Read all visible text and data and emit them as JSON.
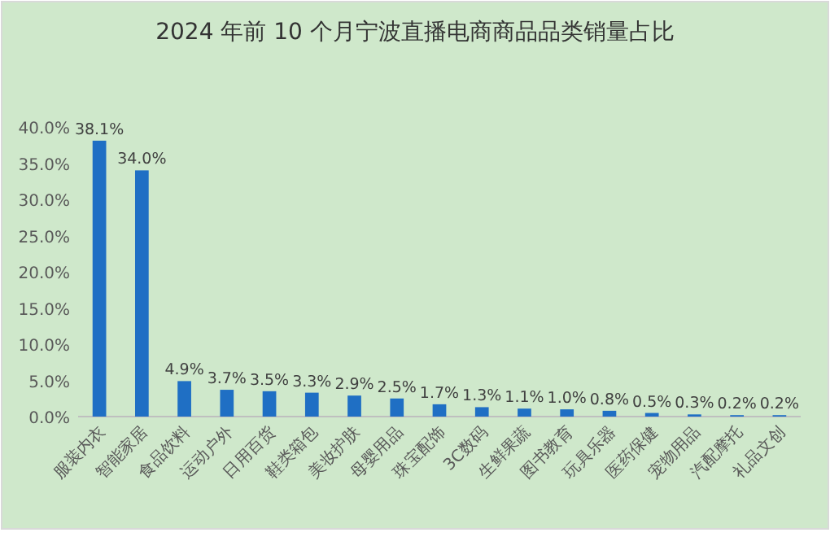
{
  "chart_data": {
    "type": "bar",
    "title": "2024 年前 10 个月宁波直播电商商品品类销量占比",
    "categories": [
      "服装内衣",
      "智能家居",
      "食品饮料",
      "运动户外",
      "日用百货",
      "鞋类箱包",
      "美妆护肤",
      "母婴用品",
      "珠宝配饰",
      "3C数码",
      "生鲜果蔬",
      "图书教育",
      "玩具乐器",
      "医药保健",
      "宠物用品",
      "汽配摩托",
      "礼品文创"
    ],
    "values": [
      38.1,
      34.0,
      4.9,
      3.7,
      3.5,
      3.3,
      2.9,
      2.5,
      1.7,
      1.3,
      1.1,
      1.0,
      0.8,
      0.5,
      0.3,
      0.2,
      0.2
    ],
    "value_labels": [
      "38.1%",
      "34.0%",
      "4.9%",
      "3.7%",
      "3.5%",
      "3.3%",
      "2.9%",
      "2.5%",
      "1.7%",
      "1.3%",
      "1.1%",
      "1.0%",
      "0.8%",
      "0.5%",
      "0.3%",
      "0.2%",
      "0.2%"
    ],
    "color": "#1f6fc4",
    "ylim": [
      0,
      40
    ],
    "yticks": [
      {
        "value": 0,
        "label": "0.0%"
      },
      {
        "value": 5,
        "label": "5.0%"
      },
      {
        "value": 10,
        "label": "10.0%"
      },
      {
        "value": 15,
        "label": "15.0%"
      },
      {
        "value": 20,
        "label": "20.0%"
      },
      {
        "value": 25,
        "label": "25.0%"
      },
      {
        "value": 30,
        "label": "30.0%"
      },
      {
        "value": 35,
        "label": "35.0%"
      },
      {
        "value": 40,
        "label": "40.0%"
      }
    ]
  }
}
